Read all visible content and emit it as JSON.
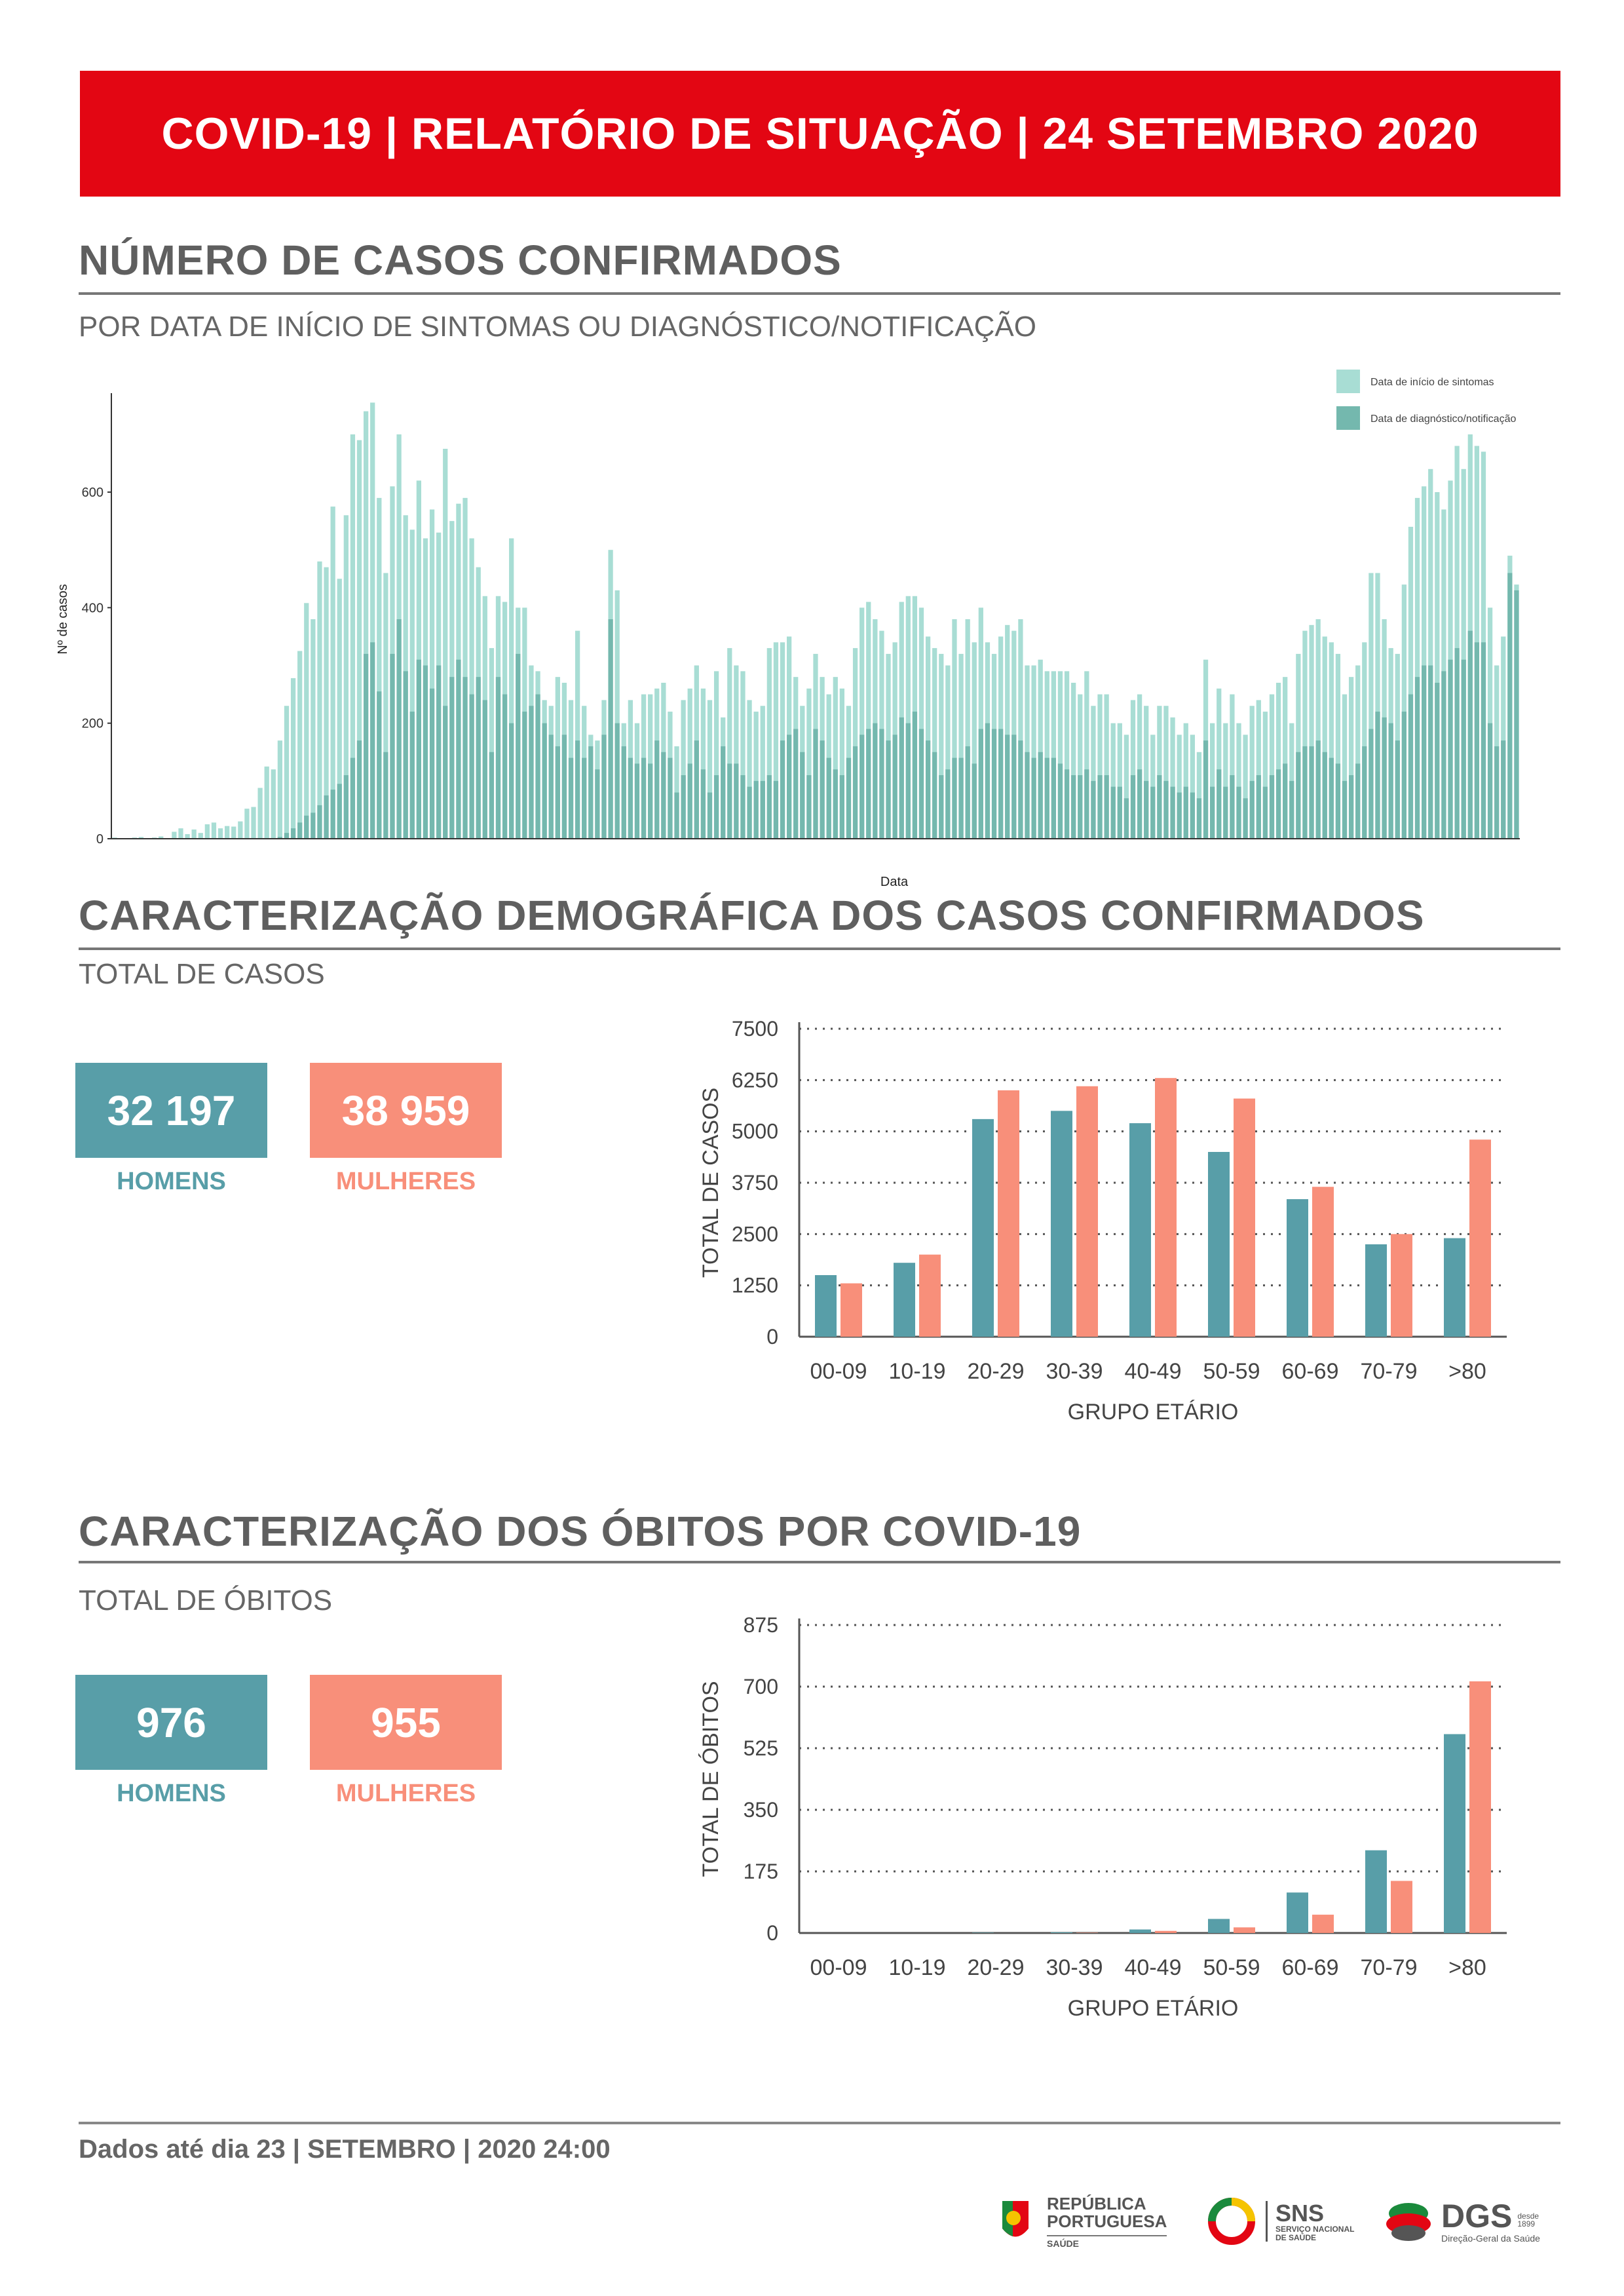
{
  "header": {
    "title": "COVID-19 | RELATÓRIO DE SITUAÇÃO | 24 SETEMBRO 2020"
  },
  "cases_section": {
    "title": "NÚMERO DE CASOS CONFIRMADOS",
    "subtitle": "POR DATA DE INÍCIO DE SINTOMAS OU DIAGNÓSTICO/NOTIFICAÇÃO"
  },
  "demo_section": {
    "title": "CARACTERIZAÇÃO DEMOGRÁFICA DOS CASOS CONFIRMADOS",
    "subtitle": "TOTAL DE CASOS",
    "men_value": "32 197",
    "men_label": "HOMENS",
    "women_value": "38 959",
    "women_label": "MULHERES"
  },
  "deaths_section": {
    "title": "CARACTERIZAÇÃO DOS ÓBITOS POR COVID-19",
    "subtitle": "TOTAL DE ÓBITOS",
    "men_value": "976",
    "men_label": "HOMENS",
    "women_value": "955",
    "women_label": "MULHERES"
  },
  "footer": {
    "text": "Dados até dia 23 | SETEMBRO | 2020 24:00"
  },
  "logos": {
    "republica_line1": "REPÚBLICA",
    "republica_line2": "PORTUGUESA",
    "republica_line3": "SAÚDE",
    "sns": "SNS",
    "sns_sub1": "SERVIÇO NACIONAL",
    "sns_sub2": "DE SAÚDE",
    "dgs": "DGS",
    "dgs_since": "desde 1899",
    "dgs_sub": "Direção-Geral da Saúde"
  },
  "colors": {
    "red": "#e30613",
    "men": "#589ea8",
    "women": "#f88f7a",
    "symptoms": "#a8ddd4",
    "notification": "#74b8ae"
  },
  "chart_data": [
    {
      "type": "bar",
      "xlabel": "Data",
      "ylabel": "Nº de casos",
      "ylim": [
        0,
        760
      ],
      "yticks": [
        0,
        200,
        400,
        600
      ],
      "legend_position": "top-right",
      "series": [
        {
          "name": "Data de início de sintomas",
          "values": [
            2,
            1,
            1,
            2,
            3,
            1,
            2,
            4,
            1,
            12,
            18,
            8,
            16,
            10,
            25,
            28,
            18,
            22,
            21,
            30,
            52,
            55,
            88,
            125,
            120,
            170,
            230,
            278,
            325,
            408,
            380,
            480,
            470,
            575,
            450,
            560,
            700,
            690,
            740,
            755,
            590,
            460,
            610,
            700,
            560,
            535,
            620,
            520,
            570,
            530,
            675,
            550,
            580,
            590,
            520,
            470,
            420,
            330,
            420,
            410,
            520,
            400,
            400,
            300,
            290,
            240,
            230,
            280,
            270,
            240,
            360,
            230,
            180,
            170,
            240,
            500,
            430,
            200,
            240,
            200,
            250,
            250,
            260,
            270,
            220,
            160,
            240,
            260,
            300,
            260,
            240,
            290,
            210,
            330,
            300,
            290,
            240,
            220,
            230,
            330,
            340,
            340,
            350,
            280,
            230,
            260,
            320,
            280,
            250,
            280,
            260,
            230,
            330,
            400,
            410,
            380,
            360,
            320,
            340,
            410,
            420,
            420,
            400,
            350,
            330,
            320,
            300,
            380,
            320,
            380,
            340,
            400,
            340,
            320,
            350,
            370,
            360,
            380,
            300,
            300,
            310,
            290,
            290,
            290,
            290,
            270,
            250,
            290,
            230,
            250,
            250,
            200,
            200,
            180,
            240,
            250,
            230,
            180,
            230,
            230,
            210,
            180,
            200,
            180,
            150,
            310,
            200,
            260,
            200,
            250,
            200,
            180,
            230,
            240,
            220,
            250,
            270,
            280,
            200,
            320,
            360,
            370,
            380,
            350,
            340,
            320,
            250,
            280,
            300,
            340,
            460,
            460,
            380,
            330,
            320,
            440,
            540,
            590,
            610,
            640,
            600,
            570,
            620,
            680,
            640,
            700,
            680,
            670,
            400,
            300,
            350,
            490,
            440
          ]
        },
        {
          "name": "Data de diagnóstico/notificação",
          "values": [
            0,
            0,
            0,
            0,
            0,
            0,
            0,
            0,
            0,
            0,
            0,
            0,
            0,
            0,
            0,
            0,
            0,
            0,
            0,
            0,
            0,
            0,
            0,
            0,
            0,
            3,
            10,
            18,
            28,
            40,
            45,
            58,
            75,
            85,
            95,
            110,
            140,
            170,
            320,
            340,
            255,
            150,
            320,
            380,
            290,
            220,
            310,
            300,
            260,
            300,
            230,
            280,
            310,
            280,
            250,
            280,
            240,
            150,
            280,
            250,
            200,
            320,
            220,
            230,
            250,
            200,
            180,
            160,
            180,
            140,
            170,
            140,
            160,
            120,
            180,
            380,
            200,
            160,
            140,
            130,
            140,
            130,
            170,
            150,
            140,
            80,
            110,
            130,
            170,
            120,
            80,
            110,
            160,
            130,
            130,
            110,
            90,
            100,
            100,
            110,
            100,
            170,
            180,
            190,
            150,
            110,
            190,
            170,
            140,
            120,
            110,
            140,
            160,
            180,
            190,
            200,
            190,
            170,
            180,
            210,
            200,
            220,
            190,
            170,
            150,
            110,
            120,
            140,
            140,
            160,
            130,
            190,
            200,
            190,
            190,
            180,
            180,
            170,
            150,
            140,
            150,
            140,
            140,
            130,
            120,
            110,
            110,
            120,
            100,
            110,
            110,
            90,
            90,
            70,
            110,
            120,
            100,
            90,
            110,
            100,
            90,
            80,
            90,
            80,
            70,
            170,
            90,
            120,
            90,
            110,
            90,
            70,
            100,
            110,
            90,
            110,
            120,
            130,
            100,
            150,
            160,
            160,
            170,
            150,
            140,
            130,
            100,
            110,
            130,
            160,
            190,
            220,
            210,
            200,
            170,
            220,
            250,
            280,
            300,
            300,
            270,
            290,
            310,
            330,
            310,
            360,
            340,
            340,
            200,
            160,
            170,
            460,
            430
          ]
        }
      ]
    },
    {
      "type": "bar",
      "categories": [
        "00-09",
        "10-19",
        "20-29",
        "30-39",
        "40-49",
        "50-59",
        "60-69",
        "70-79",
        ">80"
      ],
      "xlabel": "GRUPO ETÁRIO",
      "ylabel": "TOTAL DE CASOS",
      "ylim": [
        0,
        7500
      ],
      "yticks": [
        0,
        1250,
        2500,
        3750,
        5000,
        6250,
        7500
      ],
      "series": [
        {
          "name": "HOMENS",
          "values": [
            1500,
            1800,
            5300,
            5500,
            5200,
            4500,
            3350,
            2250,
            2400
          ]
        },
        {
          "name": "MULHERES",
          "values": [
            1300,
            2000,
            6000,
            6100,
            6300,
            5800,
            3650,
            2500,
            4800
          ]
        }
      ]
    },
    {
      "type": "bar",
      "categories": [
        "00-09",
        "10-19",
        "20-29",
        "30-39",
        "40-49",
        "50-59",
        "60-69",
        "70-79",
        ">80"
      ],
      "xlabel": "GRUPO ETÁRIO",
      "ylabel": "TOTAL DE ÓBITOS",
      "ylim": [
        0,
        875
      ],
      "yticks": [
        0,
        175,
        350,
        525,
        700,
        875
      ],
      "series": [
        {
          "name": "HOMENS",
          "values": [
            0,
            0,
            1,
            2,
            10,
            40,
            115,
            235,
            565
          ]
        },
        {
          "name": "MULHERES",
          "values": [
            0,
            0,
            0,
            1,
            6,
            16,
            52,
            148,
            715
          ]
        }
      ]
    }
  ]
}
